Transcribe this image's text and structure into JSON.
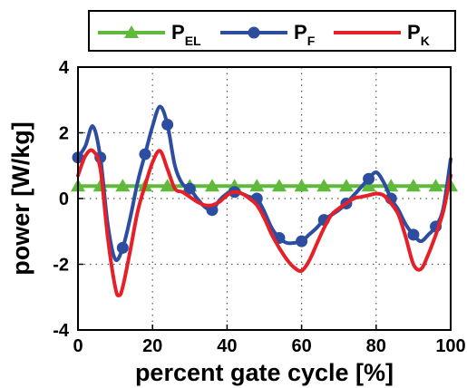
{
  "chart_data": {
    "type": "line",
    "xlabel": "percent gate cycle [%]",
    "ylabel": "power [W/kg]",
    "xlim": [
      0,
      100
    ],
    "ylim": [
      -4,
      4
    ],
    "xticks": [
      0,
      20,
      40,
      60,
      80,
      100
    ],
    "yticks": [
      -4,
      -2,
      0,
      2,
      4
    ],
    "grid": true,
    "legend_position": "top",
    "series": [
      {
        "name": "P",
        "subscript": "EL",
        "color": "#5fba3c",
        "marker": "triangle",
        "x": [
          0,
          100
        ],
        "y": [
          0.38,
          0.38
        ],
        "marker_x": [
          0,
          6,
          12,
          18,
          24,
          30,
          36,
          42,
          48,
          54,
          60,
          66,
          72,
          78,
          84,
          90,
          96,
          100
        ]
      },
      {
        "name": "P",
        "subscript": "F",
        "color": "#2d4da0",
        "marker": "circle",
        "x": [
          0,
          2,
          4,
          6,
          8,
          10,
          12,
          14,
          16,
          18,
          20,
          22,
          24,
          26,
          28,
          30,
          32,
          34,
          36,
          38,
          40,
          42,
          44,
          46,
          48,
          50,
          52,
          54,
          56,
          58,
          60,
          62,
          64,
          66,
          68,
          70,
          72,
          74,
          76,
          78,
          80,
          82,
          84,
          86,
          88,
          90,
          92,
          94,
          96,
          98,
          100
        ],
        "y": [
          1.25,
          1.6,
          2.2,
          1.25,
          -0.8,
          -1.85,
          -1.5,
          -0.6,
          0.5,
          1.35,
          2.2,
          2.8,
          2.25,
          1.0,
          0.45,
          0.3,
          0.0,
          -0.25,
          -0.35,
          -0.05,
          0.15,
          0.2,
          0.15,
          0.05,
          0.0,
          -0.4,
          -0.9,
          -1.2,
          -1.35,
          -1.35,
          -1.3,
          -1.1,
          -0.9,
          -0.65,
          -0.5,
          -0.35,
          -0.15,
          0.1,
          0.35,
          0.6,
          0.8,
          0.5,
          0.0,
          -0.35,
          -0.8,
          -1.1,
          -1.3,
          -1.1,
          -0.85,
          -0.3,
          1.2
        ],
        "marker_x": [
          0,
          6,
          12,
          18,
          24,
          30,
          36,
          42,
          48,
          54,
          60,
          66,
          72,
          78,
          84,
          90,
          96
        ]
      },
      {
        "name": "P",
        "subscript": "K",
        "color": "#e52028",
        "marker": "none",
        "x": [
          0,
          2,
          4,
          6,
          8,
          10,
          11,
          12,
          14,
          16,
          18,
          20,
          22,
          24,
          26,
          28,
          30,
          32,
          34,
          36,
          38,
          40,
          42,
          44,
          46,
          48,
          50,
          52,
          54,
          56,
          58,
          60,
          62,
          64,
          66,
          68,
          70,
          72,
          74,
          76,
          78,
          80,
          82,
          84,
          86,
          88,
          90,
          92,
          94,
          96,
          98,
          100
        ],
        "y": [
          0.7,
          1.3,
          1.45,
          0.9,
          -1.2,
          -2.7,
          -2.95,
          -2.7,
          -1.6,
          -0.4,
          0.4,
          1.1,
          1.45,
          0.9,
          0.3,
          0.2,
          0.05,
          -0.1,
          -0.2,
          -0.2,
          -0.1,
          0.1,
          0.2,
          0.15,
          0.0,
          -0.2,
          -0.6,
          -1.1,
          -1.5,
          -1.85,
          -2.1,
          -2.2,
          -1.9,
          -1.4,
          -0.9,
          -0.5,
          -0.3,
          -0.15,
          0.0,
          0.05,
          0.1,
          0.15,
          0.1,
          -0.15,
          -0.5,
          -1.2,
          -2.0,
          -2.15,
          -1.7,
          -1.1,
          -0.4,
          0.7
        ]
      }
    ]
  }
}
